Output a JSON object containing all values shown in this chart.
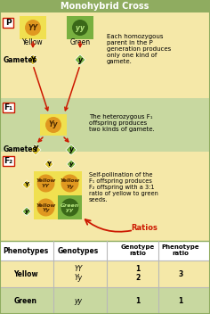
{
  "title": "Monohybrid Cross",
  "title_bg": "#8fac60",
  "title_color": "white",
  "section_P_bg": "#f5e8a8",
  "section_F1_bg": "#c8d8a0",
  "section_table_bg": "white",
  "yellow_box_color": "#f0e050",
  "green_box_color": "#78b040",
  "yellow_circle_color": "#e09820",
  "green_circle_color": "#3a6818",
  "diamond_yellow_color": "#d8c030",
  "diamond_green_color": "#78b040",
  "arrow_color": "#cc1800",
  "row_yellow_bg": "#f5e8a8",
  "row_green_bg": "#c8d8a0",
  "table_line_color": "#b8b8b8",
  "border_color": "#8fac60",
  "P_text": "P",
  "F1_text": "F₁",
  "F2_text": "F₂",
  "P_label_Yellow": "Yellow",
  "P_label_Green": "Green",
  "P_label_YY": "YY",
  "P_label_yy": "yy",
  "Gametes_text": "Gametes",
  "Gametes_Y": "Y",
  "Gametes_y": "y",
  "F1_Yy": "Yy",
  "F1_desc": "The heterozygous F₁\noffspring produces\ntwo kinds of gamete.",
  "P_desc": "Each homozygous\nparent in the P\ngeneration produces\nonly one kind of\ngamete.",
  "F2_desc": "Self-pollination of the\nF₁ offspring produces\nF₂ offspring with a 3:1\nratio of yellow to green\nseeds.",
  "Ratios_text": "Ratios",
  "col_headers": [
    "Phenotypes",
    "Genotypes",
    "Genotype\nratio",
    "Phenotype\nratio"
  ],
  "row1_phenotype": "Yellow",
  "row1_genotypes": [
    "YY",
    "Yy"
  ],
  "row1_genotype_ratio": [
    "1",
    "2"
  ],
  "row1_phenotype_ratio": "3",
  "row2_phenotype": "Green",
  "row2_genotype": "yy",
  "row2_genotype_ratio": "1",
  "row2_phenotype_ratio": "1"
}
